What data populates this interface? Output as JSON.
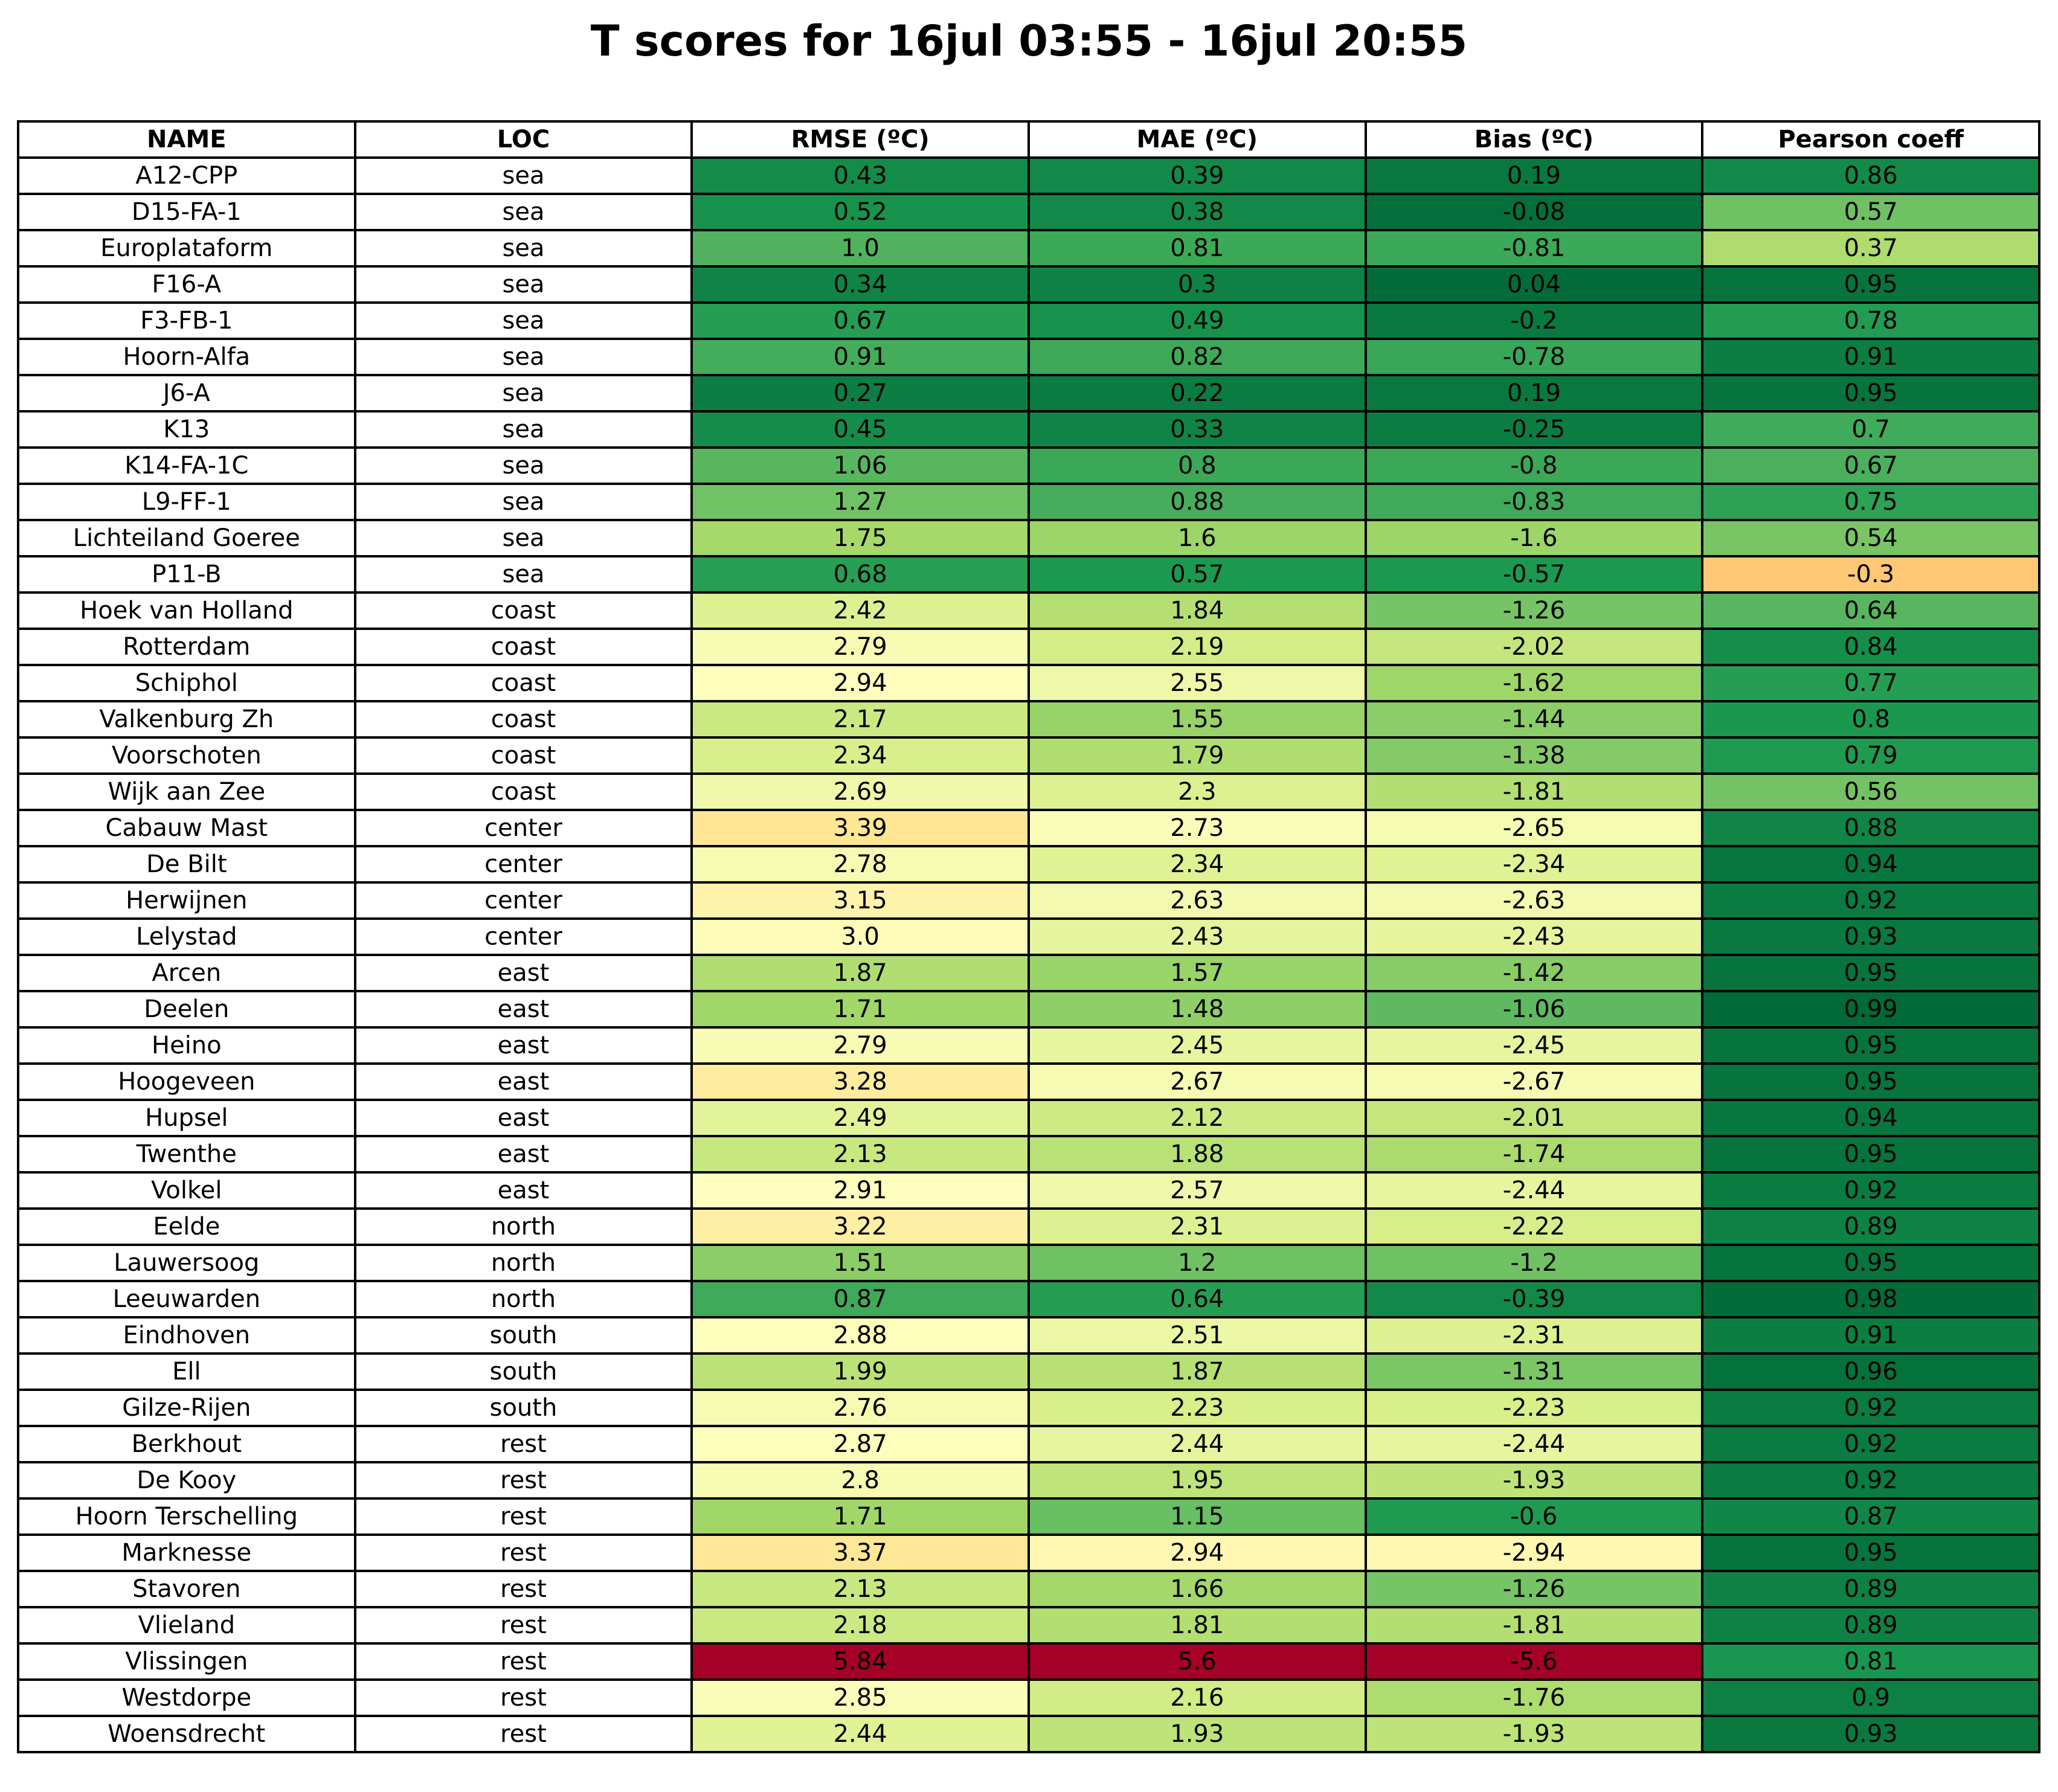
{
  "chart_data": {
    "type": "table",
    "title": "T scores for 16jul 03:55 - 16jul 20:55",
    "columns": [
      "NAME",
      "LOC",
      "RMSE (ºC)",
      "MAE (ºC)",
      "Bias (ºC)",
      "Pearson coeff"
    ],
    "rows": [
      [
        "A12-CPP",
        "sea",
        "0.43",
        "0.39",
        "0.19",
        "0.86"
      ],
      [
        "D15-FA-1",
        "sea",
        "0.52",
        "0.38",
        "-0.08",
        "0.57"
      ],
      [
        "Europlataform",
        "sea",
        "1.0",
        "0.81",
        "-0.81",
        "0.37"
      ],
      [
        "F16-A",
        "sea",
        "0.34",
        "0.3",
        "0.04",
        "0.95"
      ],
      [
        "F3-FB-1",
        "sea",
        "0.67",
        "0.49",
        "-0.2",
        "0.78"
      ],
      [
        "Hoorn-Alfa",
        "sea",
        "0.91",
        "0.82",
        "-0.78",
        "0.91"
      ],
      [
        "J6-A",
        "sea",
        "0.27",
        "0.22",
        "0.19",
        "0.95"
      ],
      [
        "K13",
        "sea",
        "0.45",
        "0.33",
        "-0.25",
        "0.7"
      ],
      [
        "K14-FA-1C",
        "sea",
        "1.06",
        "0.8",
        "-0.8",
        "0.67"
      ],
      [
        "L9-FF-1",
        "sea",
        "1.27",
        "0.88",
        "-0.83",
        "0.75"
      ],
      [
        "Lichteiland Goeree",
        "sea",
        "1.75",
        "1.6",
        "-1.6",
        "0.54"
      ],
      [
        "P11-B",
        "sea",
        "0.68",
        "0.57",
        "-0.57",
        "-0.3"
      ],
      [
        "Hoek van Holland",
        "coast",
        "2.42",
        "1.84",
        "-1.26",
        "0.64"
      ],
      [
        "Rotterdam",
        "coast",
        "2.79",
        "2.19",
        "-2.02",
        "0.84"
      ],
      [
        "Schiphol",
        "coast",
        "2.94",
        "2.55",
        "-1.62",
        "0.77"
      ],
      [
        "Valkenburg Zh",
        "coast",
        "2.17",
        "1.55",
        "-1.44",
        "0.8"
      ],
      [
        "Voorschoten",
        "coast",
        "2.34",
        "1.79",
        "-1.38",
        "0.79"
      ],
      [
        "Wijk aan Zee",
        "coast",
        "2.69",
        "2.3",
        "-1.81",
        "0.56"
      ],
      [
        "Cabauw Mast",
        "center",
        "3.39",
        "2.73",
        "-2.65",
        "0.88"
      ],
      [
        "De Bilt",
        "center",
        "2.78",
        "2.34",
        "-2.34",
        "0.94"
      ],
      [
        "Herwijnen",
        "center",
        "3.15",
        "2.63",
        "-2.63",
        "0.92"
      ],
      [
        "Lelystad",
        "center",
        "3.0",
        "2.43",
        "-2.43",
        "0.93"
      ],
      [
        "Arcen",
        "east",
        "1.87",
        "1.57",
        "-1.42",
        "0.95"
      ],
      [
        "Deelen",
        "east",
        "1.71",
        "1.48",
        "-1.06",
        "0.99"
      ],
      [
        "Heino",
        "east",
        "2.79",
        "2.45",
        "-2.45",
        "0.95"
      ],
      [
        "Hoogeveen",
        "east",
        "3.28",
        "2.67",
        "-2.67",
        "0.95"
      ],
      [
        "Hupsel",
        "east",
        "2.49",
        "2.12",
        "-2.01",
        "0.94"
      ],
      [
        "Twenthe",
        "east",
        "2.13",
        "1.88",
        "-1.74",
        "0.95"
      ],
      [
        "Volkel",
        "east",
        "2.91",
        "2.57",
        "-2.44",
        "0.92"
      ],
      [
        "Eelde",
        "north",
        "3.22",
        "2.31",
        "-2.22",
        "0.89"
      ],
      [
        "Lauwersoog",
        "north",
        "1.51",
        "1.2",
        "-1.2",
        "0.95"
      ],
      [
        "Leeuwarden",
        "north",
        "0.87",
        "0.64",
        "-0.39",
        "0.98"
      ],
      [
        "Eindhoven",
        "south",
        "2.88",
        "2.51",
        "-2.31",
        "0.91"
      ],
      [
        "Ell",
        "south",
        "1.99",
        "1.87",
        "-1.31",
        "0.96"
      ],
      [
        "Gilze-Rijen",
        "south",
        "2.76",
        "2.23",
        "-2.23",
        "0.92"
      ],
      [
        "Berkhout",
        "rest",
        "2.87",
        "2.44",
        "-2.44",
        "0.92"
      ],
      [
        "De Kooy",
        "rest",
        "2.8",
        "1.95",
        "-1.93",
        "0.92"
      ],
      [
        "Hoorn Terschelling",
        "rest",
        "1.71",
        "1.15",
        "-0.6",
        "0.87"
      ],
      [
        "Marknesse",
        "rest",
        "3.37",
        "2.94",
        "-2.94",
        "0.95"
      ],
      [
        "Stavoren",
        "rest",
        "2.13",
        "1.66",
        "-1.26",
        "0.89"
      ],
      [
        "Vlieland",
        "rest",
        "2.18",
        "1.81",
        "-1.81",
        "0.89"
      ],
      [
        "Vlissingen",
        "rest",
        "5.84",
        "5.6",
        "-5.6",
        "0.81"
      ],
      [
        "Westdorpe",
        "rest",
        "2.85",
        "2.16",
        "-1.76",
        "0.9"
      ],
      [
        "Woensdrecht",
        "rest",
        "2.44",
        "1.93",
        "-1.93",
        "0.93"
      ]
    ],
    "cell_colors": {
      "colormap": "RdYlGn (green = good, red = bad)",
      "stops": [
        "#006837",
        "#1a9850",
        "#66bd63",
        "#a6d96a",
        "#d9ef8b",
        "#ffffbf",
        "#fee08b",
        "#fdae61",
        "#f46d43",
        "#d73027",
        "#a50026"
      ],
      "ranges": {
        "RMSE (ºC)": [
          0,
          5.84
        ],
        "MAE (ºC)": [
          0,
          5.6
        ],
        "Bias (ºC)": "abs value, [0, 5.6]",
        "Pearson coeff": "1 - r, [0, 2]"
      }
    }
  }
}
